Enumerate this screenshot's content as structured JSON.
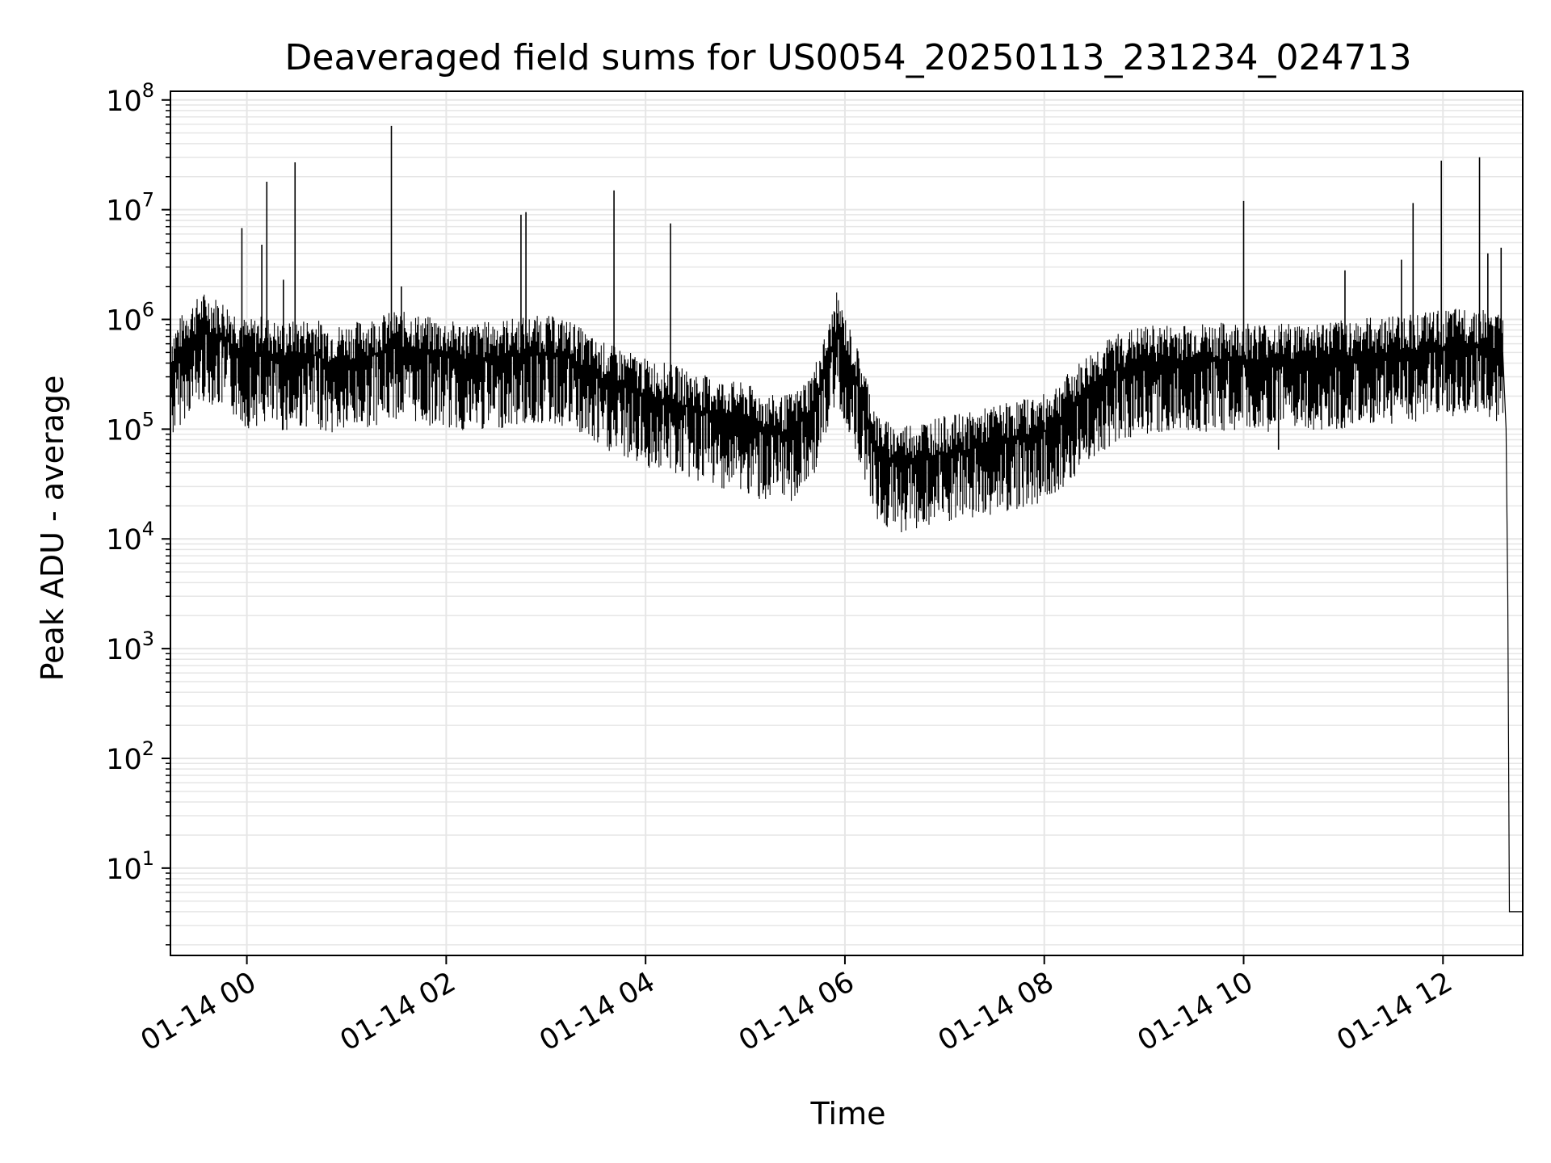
{
  "chart_data": {
    "type": "line",
    "title": "Deaveraged field sums for US0054_20250113_231234_024713",
    "xlabel": "Time",
    "ylabel": "Peak ADU - average",
    "yscale": "log",
    "ylim": [
      1.6,
      120000000
    ],
    "xlim": [
      "2025-01-13 23:14",
      "2025-01-14 12:48"
    ],
    "grid": true,
    "line_color": "#000000",
    "grid_color": "#e6e6e6",
    "x_ticks": [
      {
        "t": "2025-01-14 00:00",
        "label": "01-14 00"
      },
      {
        "t": "2025-01-14 02:00",
        "label": "01-14 02"
      },
      {
        "t": "2025-01-14 04:00",
        "label": "01-14 04"
      },
      {
        "t": "2025-01-14 06:00",
        "label": "01-14 06"
      },
      {
        "t": "2025-01-14 08:00",
        "label": "01-14 08"
      },
      {
        "t": "2025-01-14 10:00",
        "label": "01-14 10"
      },
      {
        "t": "2025-01-14 12:00",
        "label": "01-14 12"
      }
    ],
    "y_ticks": [
      {
        "value": 10,
        "base": "10",
        "exp": "1"
      },
      {
        "value": 100,
        "base": "10",
        "exp": "2"
      },
      {
        "value": 1000,
        "base": "10",
        "exp": "3"
      },
      {
        "value": 10000,
        "base": "10",
        "exp": "4"
      },
      {
        "value": 100000,
        "base": "10",
        "exp": "5"
      },
      {
        "value": 1000000,
        "base": "10",
        "exp": "6"
      },
      {
        "value": 10000000,
        "base": "10",
        "exp": "7"
      },
      {
        "value": 100000000,
        "base": "10",
        "exp": "8"
      }
    ],
    "series": [
      {
        "x": [
          "2025-01-13 23:14",
          "2025-01-13 23:24",
          "2025-01-13 23:34",
          "2025-01-13 23:44",
          "2025-01-13 23:54",
          "2025-01-14 00:00",
          "2025-01-14 00:10",
          "2025-01-14 00:20",
          "2025-01-14 00:30",
          "2025-01-14 00:40",
          "2025-01-14 00:50",
          "2025-01-14 01:00",
          "2025-01-14 01:10",
          "2025-01-14 01:20",
          "2025-01-14 01:30",
          "2025-01-14 01:40",
          "2025-01-14 01:50",
          "2025-01-14 02:00",
          "2025-01-14 02:15",
          "2025-01-14 02:30",
          "2025-01-14 02:45",
          "2025-01-14 03:00",
          "2025-01-14 03:15",
          "2025-01-14 03:30",
          "2025-01-14 03:45",
          "2025-01-14 04:00",
          "2025-01-14 04:15",
          "2025-01-14 04:30",
          "2025-01-14 04:45",
          "2025-01-14 05:00",
          "2025-01-14 05:10",
          "2025-01-14 05:20",
          "2025-01-14 05:30",
          "2025-01-14 05:40",
          "2025-01-14 05:50",
          "2025-01-14 05:55",
          "2025-01-14 06:00",
          "2025-01-14 06:10",
          "2025-01-14 06:20",
          "2025-01-14 06:30",
          "2025-01-14 06:45",
          "2025-01-14 07:00",
          "2025-01-14 07:15",
          "2025-01-14 07:30",
          "2025-01-14 07:45",
          "2025-01-14 08:00",
          "2025-01-14 08:15",
          "2025-01-14 08:30",
          "2025-01-14 08:45",
          "2025-01-14 09:00",
          "2025-01-14 09:30",
          "2025-01-14 10:00",
          "2025-01-14 10:30",
          "2025-01-14 11:00",
          "2025-01-14 11:30",
          "2025-01-14 12:00",
          "2025-01-14 12:20",
          "2025-01-14 12:36",
          "2025-01-14 12:38",
          "2025-01-14 12:39",
          "2025-01-14 12:40",
          "2025-01-14 12:44",
          "2025-01-14 12:48"
        ],
        "y": [
          350000,
          600000,
          800000,
          700000,
          550000,
          450000,
          500000,
          420000,
          450000,
          480000,
          400000,
          420000,
          450000,
          500000,
          550000,
          520000,
          480000,
          450000,
          420000,
          450000,
          480000,
          500000,
          450000,
          300000,
          250000,
          200000,
          180000,
          150000,
          130000,
          120000,
          100000,
          90000,
          100000,
          150000,
          400000,
          800000,
          500000,
          200000,
          60000,
          50000,
          55000,
          60000,
          65000,
          75000,
          85000,
          95000,
          150000,
          250000,
          350000,
          400000,
          420000,
          430000,
          420000,
          450000,
          500000,
          550000,
          600000,
          500000,
          100000,
          3000,
          4,
          4,
          4
        ]
      }
    ],
    "spikes": [
      {
        "t": "2025-01-13 23:57",
        "y": 6800000
      },
      {
        "t": "2025-01-14 00:09",
        "y": 4800000
      },
      {
        "t": "2025-01-14 00:12",
        "y": 18000000
      },
      {
        "t": "2025-01-14 00:22",
        "y": 2300000
      },
      {
        "t": "2025-01-14 00:29",
        "y": 27000000
      },
      {
        "t": "2025-01-14 01:27",
        "y": 58000000
      },
      {
        "t": "2025-01-14 01:33",
        "y": 2000000
      },
      {
        "t": "2025-01-14 02:45",
        "y": 9000000
      },
      {
        "t": "2025-01-14 02:48",
        "y": 9500000
      },
      {
        "t": "2025-01-14 03:41",
        "y": 15000000
      },
      {
        "t": "2025-01-14 04:15",
        "y": 7500000
      },
      {
        "t": "2025-01-14 10:00",
        "y": 12000000
      },
      {
        "t": "2025-01-14 11:01",
        "y": 2800000
      },
      {
        "t": "2025-01-14 11:35",
        "y": 3500000
      },
      {
        "t": "2025-01-14 11:42",
        "y": 11500000
      },
      {
        "t": "2025-01-14 11:59",
        "y": 28000000
      },
      {
        "t": "2025-01-14 12:22",
        "y": 30000000
      },
      {
        "t": "2025-01-14 12:27",
        "y": 4000000
      },
      {
        "t": "2025-01-14 12:35",
        "y": 4500000
      }
    ],
    "dips": [
      {
        "t": "2025-01-14 05:02",
        "y": 26000
      },
      {
        "t": "2025-01-14 06:20",
        "y": 20000
      },
      {
        "t": "2025-01-14 06:33",
        "y": 21000
      },
      {
        "t": "2025-01-14 10:21",
        "y": 65000
      }
    ]
  }
}
